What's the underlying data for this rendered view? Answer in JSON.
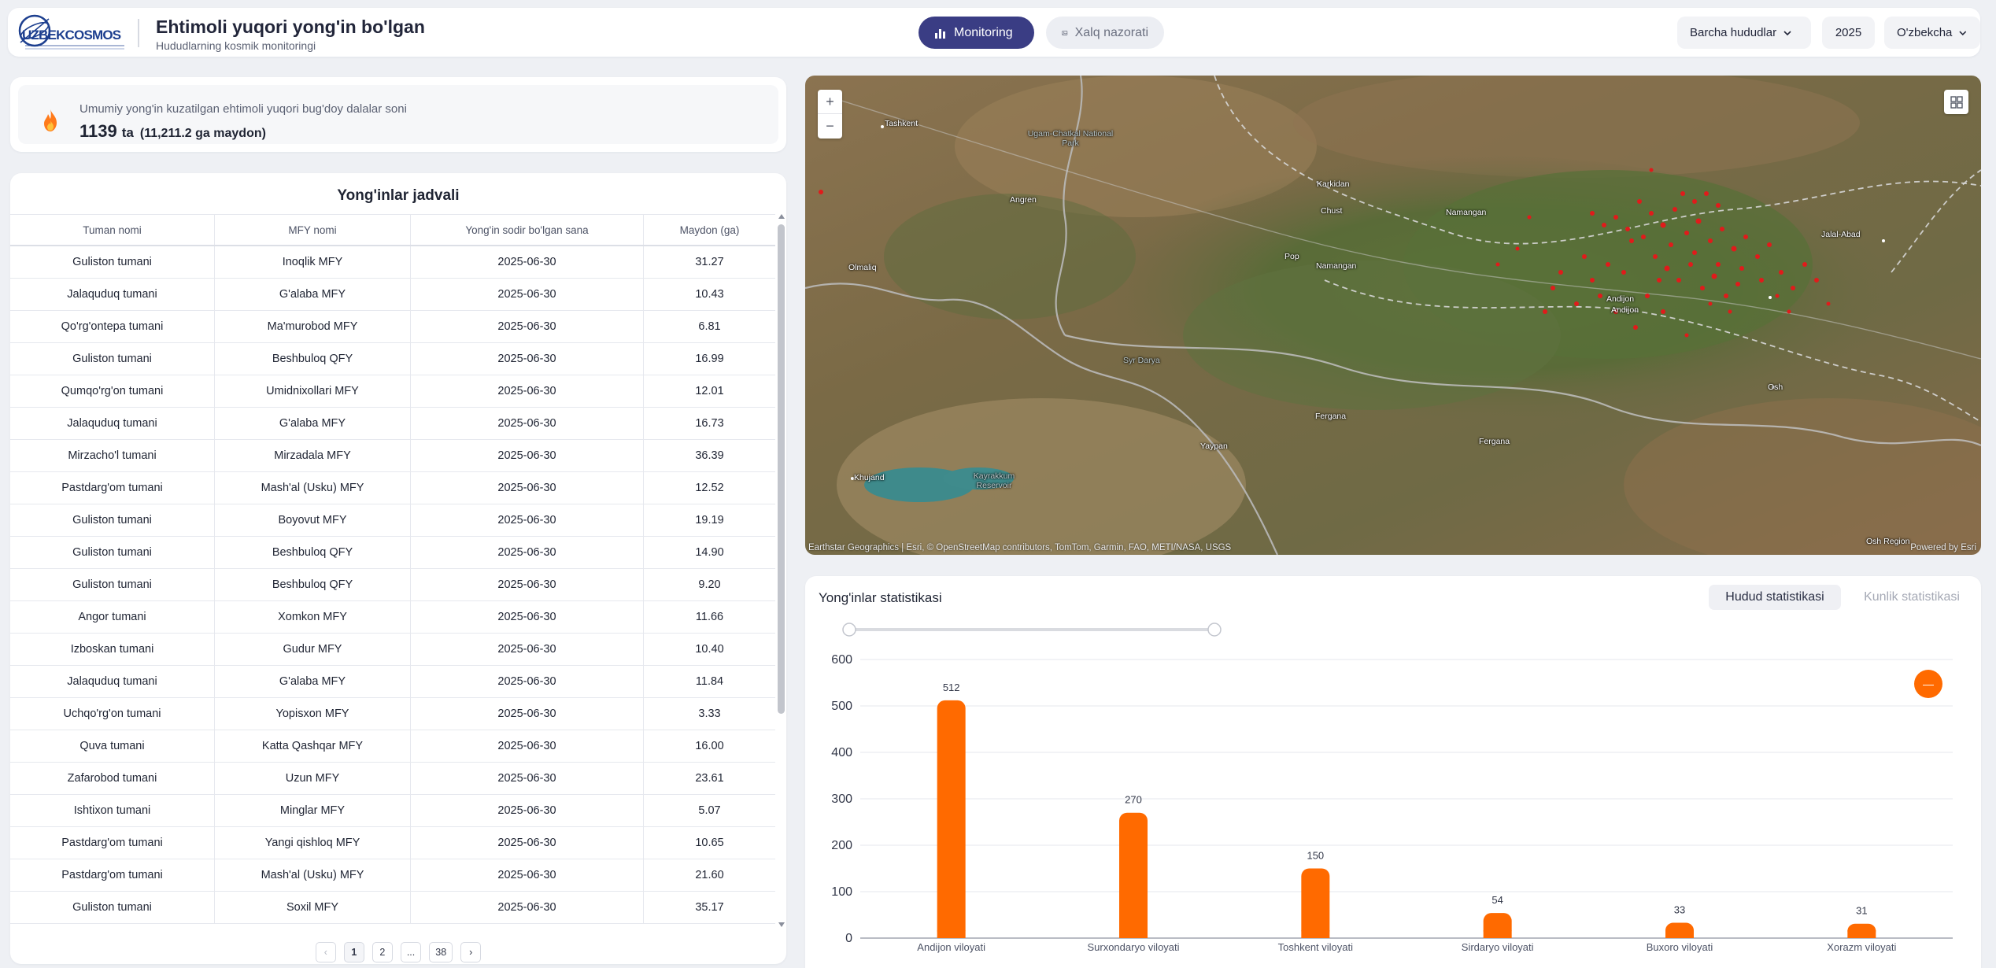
{
  "header": {
    "logo_text": "UZBEKCOSMOS",
    "title": "Ehtimoli yuqori yong'in bo'lgan",
    "subtitle": "Hududlarning kosmik monitoringi",
    "tabs": [
      {
        "label": "Monitoring",
        "icon": "bar-chart-icon",
        "active": true
      },
      {
        "label": "Xalq nazorati",
        "icon": "image-icon",
        "active": false
      }
    ],
    "region_select": "Barcha hududlar",
    "year_select": "2025",
    "language_select": "O'zbekcha"
  },
  "summary": {
    "label": "Umumiy yong'in kuzatilgan ehtimoli yuqori bug'doy dalalar soni",
    "count": "1139",
    "unit": "ta",
    "area": "(11,211.2 ga maydon)",
    "icon": "fire-icon"
  },
  "table": {
    "title": "Yong'inlar jadvali",
    "columns": [
      "Tuman nomi",
      "MFY nomi",
      "Yong'in sodir bo'lgan sana",
      "Maydon (ga)"
    ],
    "rows": [
      [
        "Guliston tumani",
        "Inoqlik MFY",
        "2025-06-30",
        "31.27"
      ],
      [
        "Jalaquduq tumani",
        "G'alaba MFY",
        "2025-06-30",
        "10.43"
      ],
      [
        "Qo'rg'ontepa tumani",
        "Ma'murobod MFY",
        "2025-06-30",
        "6.81"
      ],
      [
        "Guliston tumani",
        "Beshbuloq QFY",
        "2025-06-30",
        "16.99"
      ],
      [
        "Qumqo'rg'on tumani",
        "Umidnixollari MFY",
        "2025-06-30",
        "12.01"
      ],
      [
        "Jalaquduq tumani",
        "G'alaba MFY",
        "2025-06-30",
        "16.73"
      ],
      [
        "Mirzacho'l tumani",
        "Mirzadala MFY",
        "2025-06-30",
        "36.39"
      ],
      [
        "Pastdarg'om tumani",
        "Mash'al (Usku) MFY",
        "2025-06-30",
        "12.52"
      ],
      [
        "Guliston tumani",
        "Boyovut MFY",
        "2025-06-30",
        "19.19"
      ],
      [
        "Guliston tumani",
        "Beshbuloq QFY",
        "2025-06-30",
        "14.90"
      ],
      [
        "Guliston tumani",
        "Beshbuloq QFY",
        "2025-06-30",
        "9.20"
      ],
      [
        "Angor tumani",
        "Xomkon MFY",
        "2025-06-30",
        "11.66"
      ],
      [
        "Izboskan tumani",
        "Gudur MFY",
        "2025-06-30",
        "10.40"
      ],
      [
        "Jalaquduq tumani",
        "G'alaba MFY",
        "2025-06-30",
        "11.84"
      ],
      [
        "Uchqo'rg'on tumani",
        "Yopisxon MFY",
        "2025-06-30",
        "3.33"
      ],
      [
        "Quva tumani",
        "Katta Qashqar MFY",
        "2025-06-30",
        "16.00"
      ],
      [
        "Zafarobod tumani",
        "Uzun MFY",
        "2025-06-30",
        "23.61"
      ],
      [
        "Ishtixon tumani",
        "Minglar MFY",
        "2025-06-30",
        "5.07"
      ],
      [
        "Pastdarg'om tumani",
        "Yangi qishloq MFY",
        "2025-06-30",
        "10.65"
      ],
      [
        "Pastdarg'om tumani",
        "Mash'al (Usku) MFY",
        "2025-06-30",
        "21.60"
      ],
      [
        "Guliston tumani",
        "Soxil MFY",
        "2025-06-30",
        "35.17"
      ]
    ],
    "pagination": {
      "prev": "‹",
      "pages": [
        "1",
        "2",
        "...",
        "38"
      ],
      "current": "1",
      "next": "›"
    }
  },
  "map": {
    "zoom_in": "+",
    "zoom_out": "−",
    "attribution": "Earthstar Geographics | Esri, © OpenStreetMap contributors, TomTom, Garmin, FAO, METI/NASA, USGS",
    "powered_by": "Powered by Esri",
    "labels": [
      "Tashkent",
      "Ugam-Chatkal National Park",
      "Angren",
      "Karkidan",
      "Chust",
      "Namangan",
      "Pop",
      "Namangan",
      "Olmaliq",
      "Jalal-Abad",
      "Andijon",
      "Andijon",
      "Osh",
      "Syr Darya",
      "Fergana",
      "Fergana",
      "Yaypan",
      "Khujand",
      "Kayrakkum Reservoir",
      "Osh Region"
    ]
  },
  "stats": {
    "title": "Yong'inlar statistikasi",
    "tabs": [
      "Hudud statistikasi",
      "Kunlik statistikasi"
    ],
    "active_tab": "Hudud statistikasi",
    "bar_color": "#ff6a00"
  },
  "chart_data": {
    "type": "bar",
    "categories": [
      "Andijon viloyati",
      "Surxondaryo viloyati",
      "Toshkent viloyati",
      "Sirdaryo viloyati",
      "Buxoro viloyati",
      "Xorazm viloyati"
    ],
    "values": [
      512,
      270,
      150,
      54,
      33,
      31
    ],
    "title": "",
    "xlabel": "",
    "ylabel": "",
    "ylim": [
      0,
      600
    ],
    "yticks": [
      0,
      100,
      200,
      300,
      400,
      500,
      600
    ],
    "grid": true,
    "legend": "none"
  }
}
